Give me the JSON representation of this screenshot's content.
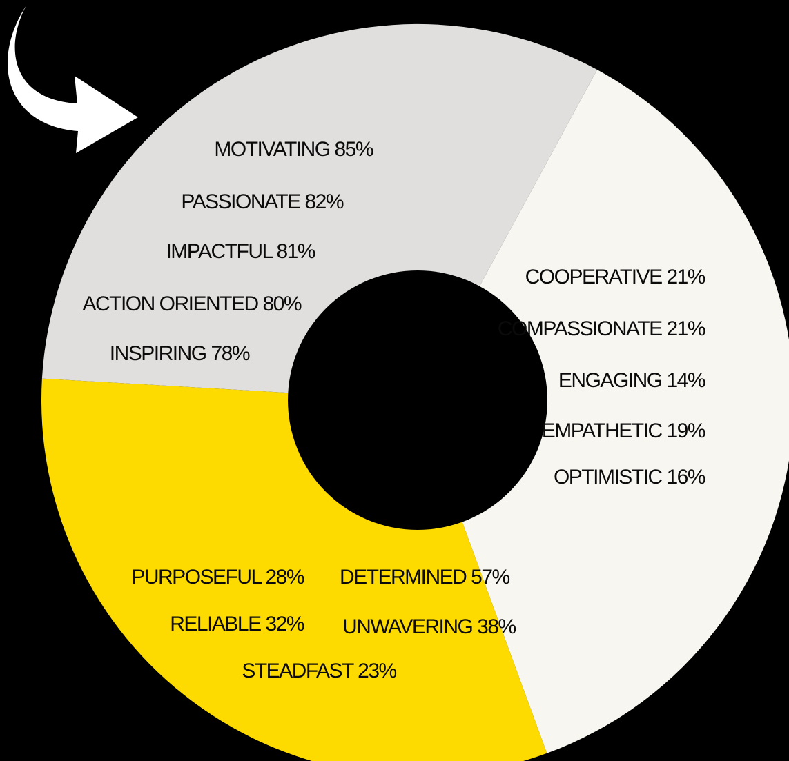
{
  "chart_data": {
    "type": "pie",
    "style": "donut",
    "background_color": "#000000",
    "hole_color": "#000000",
    "legend": "none",
    "slices": [
      {
        "color": "#f7f6f0",
        "value": 36.5,
        "labels": [
          "MOTIVATING 85%",
          "PASSIONATE 82%",
          "IMPACTFUL 81%",
          "ACTION ORIENTED  80%",
          "INSPIRING 78%"
        ]
      },
      {
        "color": "#fedb00",
        "value": 31.5,
        "labels": [
          "COOPERATIVE  21%",
          "COMPASSIONATE 21%",
          "ENGAGING    14%",
          "EMPATHETIC    19%",
          "OPTIMISTIC    16%"
        ]
      },
      {
        "color": "#e0dfdd",
        "value": 32.0,
        "labels": [
          "PURPOSEFUL 28%",
          "DETERMINED 57%",
          "RELIABLE    32%",
          "UNWAVERING 38%",
          "STEADFAST 23%"
        ]
      }
    ],
    "icons": [
      "curved-arrow-icon"
    ],
    "arrow_color": "#ffffff"
  }
}
